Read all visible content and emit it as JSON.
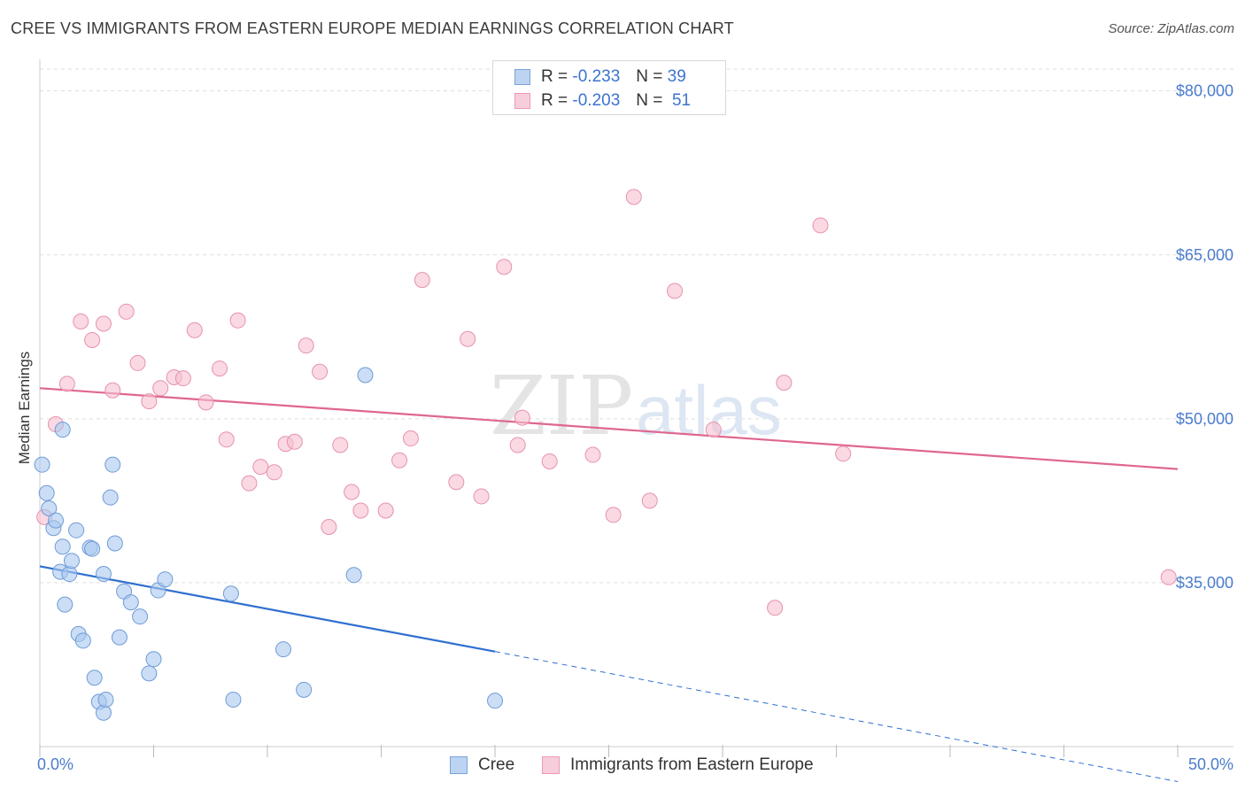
{
  "title": "CREE VS IMMIGRANTS FROM EASTERN EUROPE MEDIAN EARNINGS CORRELATION CHART",
  "source": "Source: ZipAtlas.com",
  "watermark": {
    "zip": "ZIP",
    "atlas": "atlas"
  },
  "legend": {
    "rows": [
      {
        "r_label": "R = ",
        "r_value": "-0.233",
        "n_label": "N = ",
        "n_value": "39"
      },
      {
        "r_label": "R = ",
        "r_value": "-0.203",
        "n_label": "N = ",
        "n_value": "51"
      }
    ]
  },
  "colors": {
    "cree_fill": "#a9c8ee",
    "cree_stroke": "#6f9bd8",
    "cree_line": "#2f6fd0",
    "imm_fill": "#f6c0d0",
    "imm_stroke": "#e792ad",
    "imm_line": "#e0668f",
    "tick_text": "#4a7ccc",
    "grid": "#dddddd"
  },
  "chart_data": {
    "type": "scatter",
    "xlabel": "",
    "ylabel": "Median Earnings",
    "xlim": [
      0,
      50
    ],
    "ylim": [
      20000,
      82000
    ],
    "x_tick_labels": [
      "0.0%",
      "50.0%"
    ],
    "y_ticks": [
      35000,
      50000,
      65000,
      80000
    ],
    "y_tick_labels": [
      "$35,000",
      "$50,000",
      "$65,000",
      "$80,000"
    ],
    "grid": "horizontal dashed",
    "legend_position": "top-center",
    "series": [
      {
        "name": "Cree",
        "trend": {
          "x0": 0,
          "y0": 36500,
          "x1": 20,
          "y1": 28700,
          "dashed_to_x": 50,
          "dashed_to_y": 16800
        },
        "points": [
          [
            0.1,
            45800
          ],
          [
            0.3,
            43200
          ],
          [
            0.4,
            41800
          ],
          [
            0.6,
            40000
          ],
          [
            0.7,
            40700
          ],
          [
            1.0,
            49000
          ],
          [
            0.9,
            36000
          ],
          [
            1.0,
            38300
          ],
          [
            1.1,
            33000
          ],
          [
            1.3,
            35800
          ],
          [
            1.4,
            37000
          ],
          [
            1.6,
            39800
          ],
          [
            1.7,
            30300
          ],
          [
            1.9,
            29700
          ],
          [
            2.2,
            38200
          ],
          [
            2.3,
            38100
          ],
          [
            2.4,
            26300
          ],
          [
            2.6,
            24100
          ],
          [
            2.8,
            35800
          ],
          [
            2.8,
            23100
          ],
          [
            2.9,
            24300
          ],
          [
            3.1,
            42800
          ],
          [
            3.2,
            45800
          ],
          [
            3.3,
            38600
          ],
          [
            3.5,
            30000
          ],
          [
            3.7,
            34200
          ],
          [
            4.0,
            33200
          ],
          [
            4.4,
            31900
          ],
          [
            4.8,
            26700
          ],
          [
            5.0,
            28000
          ],
          [
            5.2,
            34300
          ],
          [
            5.5,
            35300
          ],
          [
            8.4,
            34000
          ],
          [
            8.5,
            24300
          ],
          [
            10.7,
            28900
          ],
          [
            11.6,
            25200
          ],
          [
            13.8,
            35700
          ],
          [
            14.3,
            54000
          ],
          [
            20.0,
            24200
          ]
        ]
      },
      {
        "name": "Immigrants from Eastern Europe",
        "trend": {
          "x0": 0,
          "y0": 52800,
          "x1": 50,
          "y1": 45400
        },
        "points": [
          [
            0.2,
            41000
          ],
          [
            0.7,
            49500
          ],
          [
            1.2,
            53200
          ],
          [
            1.8,
            58900
          ],
          [
            2.3,
            57200
          ],
          [
            2.8,
            58700
          ],
          [
            3.2,
            52600
          ],
          [
            3.8,
            59800
          ],
          [
            4.3,
            55100
          ],
          [
            4.8,
            51600
          ],
          [
            5.3,
            52800
          ],
          [
            5.9,
            53800
          ],
          [
            6.3,
            53700
          ],
          [
            6.8,
            58100
          ],
          [
            7.3,
            51500
          ],
          [
            7.9,
            54600
          ],
          [
            8.2,
            48100
          ],
          [
            8.7,
            59000
          ],
          [
            9.2,
            44100
          ],
          [
            9.7,
            45600
          ],
          [
            10.3,
            45100
          ],
          [
            10.8,
            47700
          ],
          [
            11.2,
            47900
          ],
          [
            11.7,
            56700
          ],
          [
            12.3,
            54300
          ],
          [
            12.7,
            40100
          ],
          [
            13.2,
            47600
          ],
          [
            13.7,
            43300
          ],
          [
            14.1,
            41600
          ],
          [
            15.2,
            41600
          ],
          [
            15.8,
            46200
          ],
          [
            16.3,
            48200
          ],
          [
            16.8,
            62700
          ],
          [
            18.3,
            44200
          ],
          [
            18.8,
            57300
          ],
          [
            19.4,
            42900
          ],
          [
            20.4,
            63900
          ],
          [
            21.0,
            47600
          ],
          [
            21.2,
            50100
          ],
          [
            22.4,
            46100
          ],
          [
            24.3,
            46700
          ],
          [
            25.2,
            41200
          ],
          [
            26.1,
            70300
          ],
          [
            26.8,
            42500
          ],
          [
            27.9,
            61700
          ],
          [
            29.6,
            49000
          ],
          [
            32.3,
            32700
          ],
          [
            32.7,
            53300
          ],
          [
            34.3,
            67700
          ],
          [
            35.3,
            46800
          ],
          [
            49.6,
            35500
          ]
        ]
      }
    ]
  },
  "bottom_legend": {
    "cree": "Cree",
    "imm": "Immigrants from Eastern Europe"
  }
}
